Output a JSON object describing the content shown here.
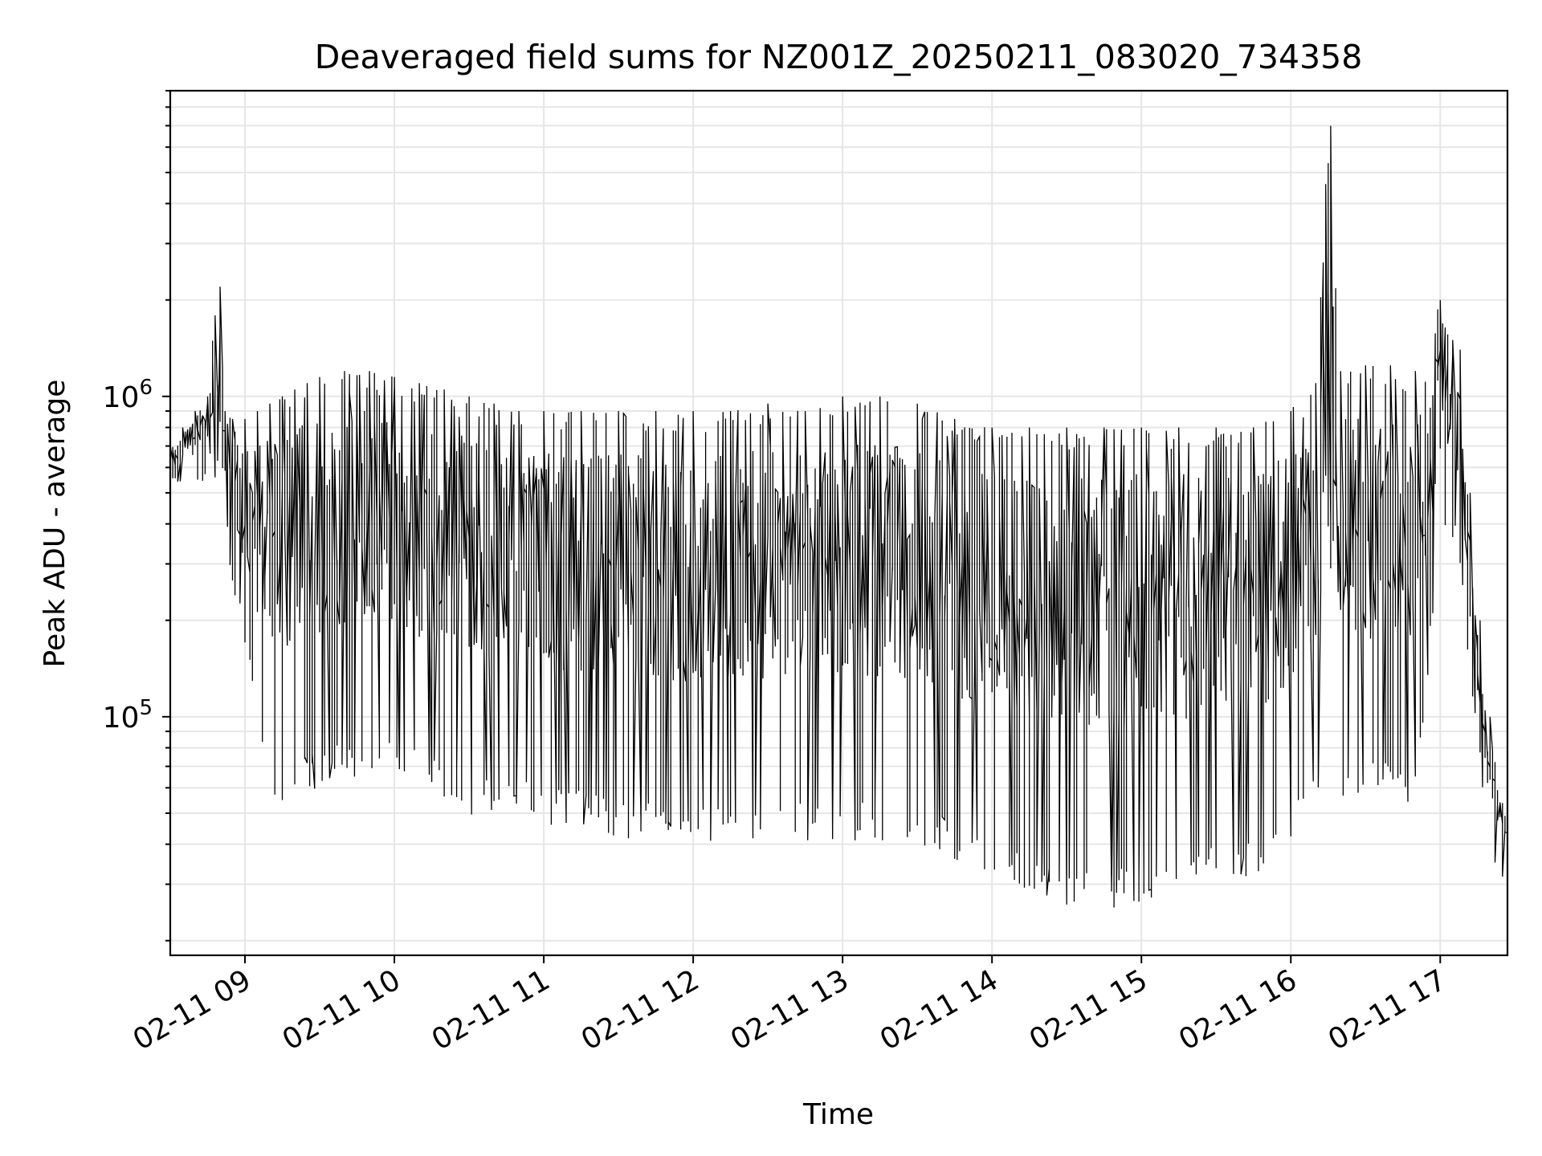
{
  "chart_data": {
    "type": "line",
    "title": "Deaveraged field sums for NZ001Z_20250211_083020_734358",
    "xlabel": "Time",
    "ylabel": "Peak ADU - average",
    "yscale": "log",
    "ylim": [
      18000,
      9000000
    ],
    "xlim": [
      "2025-02-11 08:30",
      "2025-02-11 17:27"
    ],
    "grid": true,
    "line_color": "#000000",
    "grid_color": "#e6e6e6",
    "x_ticks": [
      {
        "value": "2025-02-11 09:00",
        "label": "02-11 09"
      },
      {
        "value": "2025-02-11 10:00",
        "label": "02-11 10"
      },
      {
        "value": "2025-02-11 11:00",
        "label": "02-11 11"
      },
      {
        "value": "2025-02-11 12:00",
        "label": "02-11 12"
      },
      {
        "value": "2025-02-11 13:00",
        "label": "02-11 13"
      },
      {
        "value": "2025-02-11 14:00",
        "label": "02-11 14"
      },
      {
        "value": "2025-02-11 15:00",
        "label": "02-11 15"
      },
      {
        "value": "2025-02-11 16:00",
        "label": "02-11 16"
      },
      {
        "value": "2025-02-11 17:00",
        "label": "02-11 17"
      }
    ],
    "y_ticks": [
      {
        "value": 100000,
        "base": "10",
        "exp": "5"
      },
      {
        "value": 1000000,
        "base": "10",
        "exp": "6"
      }
    ],
    "series": [
      {
        "x": [
          "2025-02-11 08:30",
          "2025-02-11 08:35",
          "2025-02-11 08:40",
          "2025-02-11 08:45",
          "2025-02-11 08:50",
          "2025-02-11 08:52",
          "2025-02-11 08:55",
          "2025-02-11 09:00",
          "2025-02-11 09:05",
          "2025-02-11 09:10",
          "2025-02-11 09:15",
          "2025-02-11 09:20",
          "2025-02-11 09:25",
          "2025-02-11 09:30",
          "2025-02-11 09:40",
          "2025-02-11 09:50",
          "2025-02-11 10:00",
          "2025-02-11 10:10",
          "2025-02-11 10:20",
          "2025-02-11 10:30",
          "2025-02-11 10:40",
          "2025-02-11 10:50",
          "2025-02-11 11:00",
          "2025-02-11 11:15",
          "2025-02-11 11:30",
          "2025-02-11 11:45",
          "2025-02-11 12:00",
          "2025-02-11 12:15",
          "2025-02-11 12:30",
          "2025-02-11 12:45",
          "2025-02-11 13:00",
          "2025-02-11 13:15",
          "2025-02-11 13:30",
          "2025-02-11 13:45",
          "2025-02-11 14:00",
          "2025-02-11 14:15",
          "2025-02-11 14:30",
          "2025-02-11 14:45",
          "2025-02-11 15:00",
          "2025-02-11 15:15",
          "2025-02-11 15:30",
          "2025-02-11 15:45",
          "2025-02-11 16:00",
          "2025-02-11 16:10",
          "2025-02-11 16:16",
          "2025-02-11 16:20",
          "2025-02-11 16:30",
          "2025-02-11 16:40",
          "2025-02-11 16:50",
          "2025-02-11 17:00",
          "2025-02-11 17:05",
          "2025-02-11 17:08",
          "2025-02-11 17:12",
          "2025-02-11 17:16",
          "2025-02-11 17:20",
          "2025-02-11 17:27"
        ],
        "y_high": [
          700000,
          800000,
          900000,
          1000000,
          2200000,
          900000,
          850000,
          850000,
          900000,
          950000,
          1000000,
          1050000,
          1100000,
          1150000,
          1200000,
          1200000,
          1150000,
          1100000,
          1050000,
          1000000,
          950000,
          900000,
          900000,
          900000,
          900000,
          900000,
          900000,
          900000,
          950000,
          900000,
          1000000,
          1000000,
          950000,
          850000,
          800000,
          800000,
          800000,
          800000,
          800000,
          800000,
          800000,
          800000,
          900000,
          1100000,
          7000000,
          1200000,
          1250000,
          1250000,
          1200000,
          2000000,
          1500000,
          1400000,
          500000,
          200000,
          100000,
          50000
        ],
        "y_low": [
          450000,
          550000,
          600000,
          600000,
          600000,
          500000,
          300000,
          180000,
          100000,
          70000,
          55000,
          60000,
          65000,
          65000,
          70000,
          70000,
          70000,
          65000,
          60000,
          55000,
          55000,
          55000,
          50000,
          50000,
          45000,
          45000,
          45000,
          45000,
          45000,
          45000,
          45000,
          45000,
          45000,
          40000,
          35000,
          30000,
          28000,
          28000,
          28000,
          30000,
          35000,
          35000,
          40000,
          60000,
          60000,
          60000,
          60000,
          60000,
          60000,
          300000,
          400000,
          300000,
          150000,
          80000,
          40000,
          33000
        ]
      }
    ]
  }
}
